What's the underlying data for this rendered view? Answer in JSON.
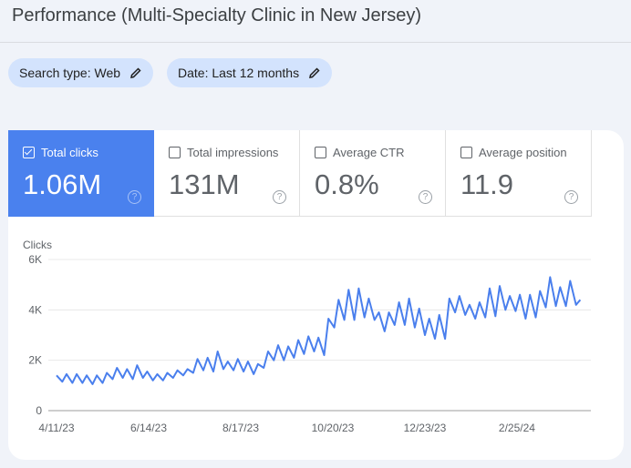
{
  "header": {
    "title": "Performance (Multi-Specialty Clinic in New Jersey)"
  },
  "filters": [
    {
      "label": "Search type: Web",
      "icon": "pencil-icon"
    },
    {
      "label": "Date: Last 12 months",
      "icon": "pencil-icon"
    }
  ],
  "metrics": [
    {
      "label": "Total clicks",
      "value": "1.06M",
      "checked": true,
      "help": "?"
    },
    {
      "label": "Total impressions",
      "value": "131M",
      "checked": false,
      "help": "?"
    },
    {
      "label": "Average CTR",
      "value": "0.8%",
      "checked": false,
      "help": "?"
    },
    {
      "label": "Average position",
      "value": "11.9",
      "checked": false,
      "help": "?"
    }
  ],
  "colors": {
    "accent": "#4a81ee",
    "line": "#4a7fed",
    "chip": "#d3e3fd"
  },
  "chart_data": {
    "type": "line",
    "ylabel": "Clicks",
    "ylim": [
      0,
      6000
    ],
    "yticks": [
      "0",
      "2K",
      "4K",
      "6K"
    ],
    "xticks": [
      "4/11/23",
      "6/14/23",
      "8/17/23",
      "10/20/23",
      "12/23/23",
      "2/25/24"
    ],
    "grid": true,
    "series": [
      {
        "points": [
          [
            "4/11/23",
            1400
          ],
          [
            "4/15/23",
            1150
          ],
          [
            "4/18/23",
            1450
          ],
          [
            "4/22/23",
            1100
          ],
          [
            "4/25/23",
            1450
          ],
          [
            "4/29/23",
            1100
          ],
          [
            "5/2/23",
            1400
          ],
          [
            "5/6/23",
            1050
          ],
          [
            "5/9/23",
            1400
          ],
          [
            "5/13/23",
            1100
          ],
          [
            "5/16/23",
            1500
          ],
          [
            "5/20/23",
            1250
          ],
          [
            "5/23/23",
            1700
          ],
          [
            "5/27/23",
            1300
          ],
          [
            "5/30/23",
            1650
          ],
          [
            "6/3/23",
            1250
          ],
          [
            "6/6/23",
            1800
          ],
          [
            "6/10/23",
            1300
          ],
          [
            "6/13/23",
            1550
          ],
          [
            "6/17/23",
            1200
          ],
          [
            "6/20/23",
            1450
          ],
          [
            "6/24/23",
            1200
          ],
          [
            "6/27/23",
            1500
          ],
          [
            "7/1/23",
            1300
          ],
          [
            "7/4/23",
            1600
          ],
          [
            "7/8/23",
            1400
          ],
          [
            "7/11/23",
            1650
          ],
          [
            "7/15/23",
            1500
          ],
          [
            "7/18/23",
            2050
          ],
          [
            "7/22/23",
            1600
          ],
          [
            "7/25/23",
            2100
          ],
          [
            "7/29/23",
            1550
          ],
          [
            "8/1/23",
            2350
          ],
          [
            "8/5/23",
            1650
          ],
          [
            "8/8/23",
            1950
          ],
          [
            "8/12/23",
            1600
          ],
          [
            "8/15/23",
            2050
          ],
          [
            "8/19/23",
            1550
          ],
          [
            "8/22/23",
            1950
          ],
          [
            "8/26/23",
            1450
          ],
          [
            "8/29/23",
            1850
          ],
          [
            "9/2/23",
            1700
          ],
          [
            "9/5/23",
            2350
          ],
          [
            "9/9/23",
            2000
          ],
          [
            "9/12/23",
            2600
          ],
          [
            "9/16/23",
            2000
          ],
          [
            "9/19/23",
            2550
          ],
          [
            "9/23/23",
            2100
          ],
          [
            "9/26/23",
            2800
          ],
          [
            "9/30/23",
            2250
          ],
          [
            "10/3/23",
            2950
          ],
          [
            "10/7/23",
            2350
          ],
          [
            "10/10/23",
            2900
          ],
          [
            "10/14/23",
            2200
          ],
          [
            "10/17/23",
            3650
          ],
          [
            "10/21/23",
            3300
          ],
          [
            "10/24/23",
            4400
          ],
          [
            "10/28/23",
            3600
          ],
          [
            "10/31/23",
            4800
          ],
          [
            "11/4/23",
            3600
          ],
          [
            "11/7/23",
            4850
          ],
          [
            "11/11/23",
            3700
          ],
          [
            "11/14/23",
            4450
          ],
          [
            "11/18/23",
            3600
          ],
          [
            "11/21/23",
            3900
          ],
          [
            "11/25/23",
            3150
          ],
          [
            "11/28/23",
            3900
          ],
          [
            "12/2/23",
            3400
          ],
          [
            "12/5/23",
            4300
          ],
          [
            "12/9/23",
            3400
          ],
          [
            "12/12/23",
            4450
          ],
          [
            "12/16/23",
            3300
          ],
          [
            "12/19/23",
            4050
          ],
          [
            "12/23/23",
            3000
          ],
          [
            "12/26/23",
            3650
          ],
          [
            "12/30/23",
            2850
          ],
          [
            "1/2/24",
            3800
          ],
          [
            "1/6/24",
            2850
          ],
          [
            "1/9/24",
            4450
          ],
          [
            "1/13/24",
            3900
          ],
          [
            "1/16/24",
            4550
          ],
          [
            "1/20/24",
            3800
          ],
          [
            "1/23/24",
            4200
          ],
          [
            "1/27/24",
            3650
          ],
          [
            "1/30/24",
            4300
          ],
          [
            "2/3/24",
            3700
          ],
          [
            "2/6/24",
            4850
          ],
          [
            "2/10/24",
            3750
          ],
          [
            "2/13/24",
            4950
          ],
          [
            "2/17/24",
            4000
          ],
          [
            "2/20/24",
            4550
          ],
          [
            "2/24/24",
            3950
          ],
          [
            "2/27/24",
            4600
          ],
          [
            "3/2/24",
            3650
          ],
          [
            "3/5/24",
            4600
          ],
          [
            "3/9/24",
            3700
          ],
          [
            "3/12/24",
            4750
          ],
          [
            "3/16/24",
            4100
          ],
          [
            "3/19/24",
            5300
          ],
          [
            "3/23/24",
            4150
          ],
          [
            "3/26/24",
            4900
          ],
          [
            "3/30/24",
            4150
          ],
          [
            "4/2/24",
            5150
          ],
          [
            "4/6/24",
            4200
          ],
          [
            "4/9/24",
            4400
          ]
        ]
      }
    ]
  }
}
